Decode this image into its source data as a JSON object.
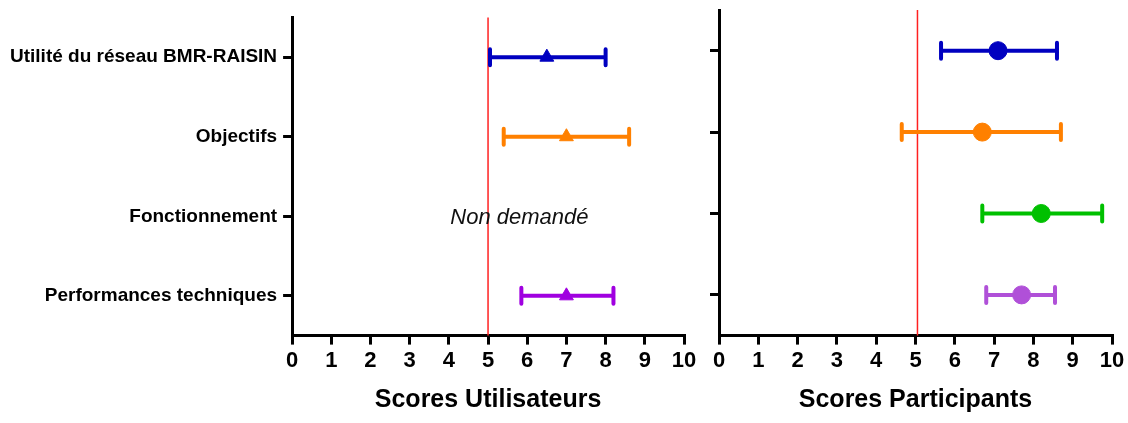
{
  "chart_data": [
    {
      "type": "scatter",
      "orientation": "horizontal",
      "categories": [
        "Utilité du réseau BMR-RAISIN",
        "Objectifs",
        "Fonctionnement",
        "Performances techniques"
      ],
      "values": [
        6.5,
        7.0,
        null,
        7.0
      ],
      "errors": [
        [
          5.05,
          8.0
        ],
        [
          5.4,
          8.6
        ],
        null,
        [
          5.85,
          8.2
        ]
      ],
      "colors": [
        "#0000c0",
        "#ff8000",
        "#00c000",
        "#a000e0"
      ],
      "marker": "triangle",
      "xlabel": "Scores Utilisateurs",
      "xlim": [
        0,
        10
      ],
      "xticks": [
        0,
        1,
        2,
        3,
        4,
        5,
        6,
        7,
        8,
        9,
        10
      ],
      "ref_lines": [
        {
          "axis": "x",
          "value": 5,
          "color": "#ff2020"
        }
      ],
      "annotations": [
        "Non demandé"
      ],
      "grid": false,
      "legend": false
    },
    {
      "type": "scatter",
      "orientation": "horizontal",
      "categories": [
        null,
        null,
        null,
        null
      ],
      "values": [
        7.1,
        6.7,
        8.2,
        7.7
      ],
      "errors": [
        [
          5.65,
          8.6
        ],
        [
          4.65,
          8.7
        ],
        [
          6.7,
          9.75
        ],
        [
          6.8,
          8.55
        ]
      ],
      "colors": [
        "#0000c0",
        "#ff8000",
        "#00c000",
        "#b050d8"
      ],
      "marker": "circle",
      "xlabel": "Scores Participants",
      "xlim": [
        0,
        10
      ],
      "xticks": [
        0,
        1,
        2,
        3,
        4,
        5,
        6,
        7,
        8,
        9,
        10
      ],
      "ref_lines": [
        {
          "axis": "x",
          "value": 5.05,
          "color": "#ff2020"
        }
      ],
      "tick_labels": "x",
      "grid": false,
      "legend": false
    }
  ]
}
